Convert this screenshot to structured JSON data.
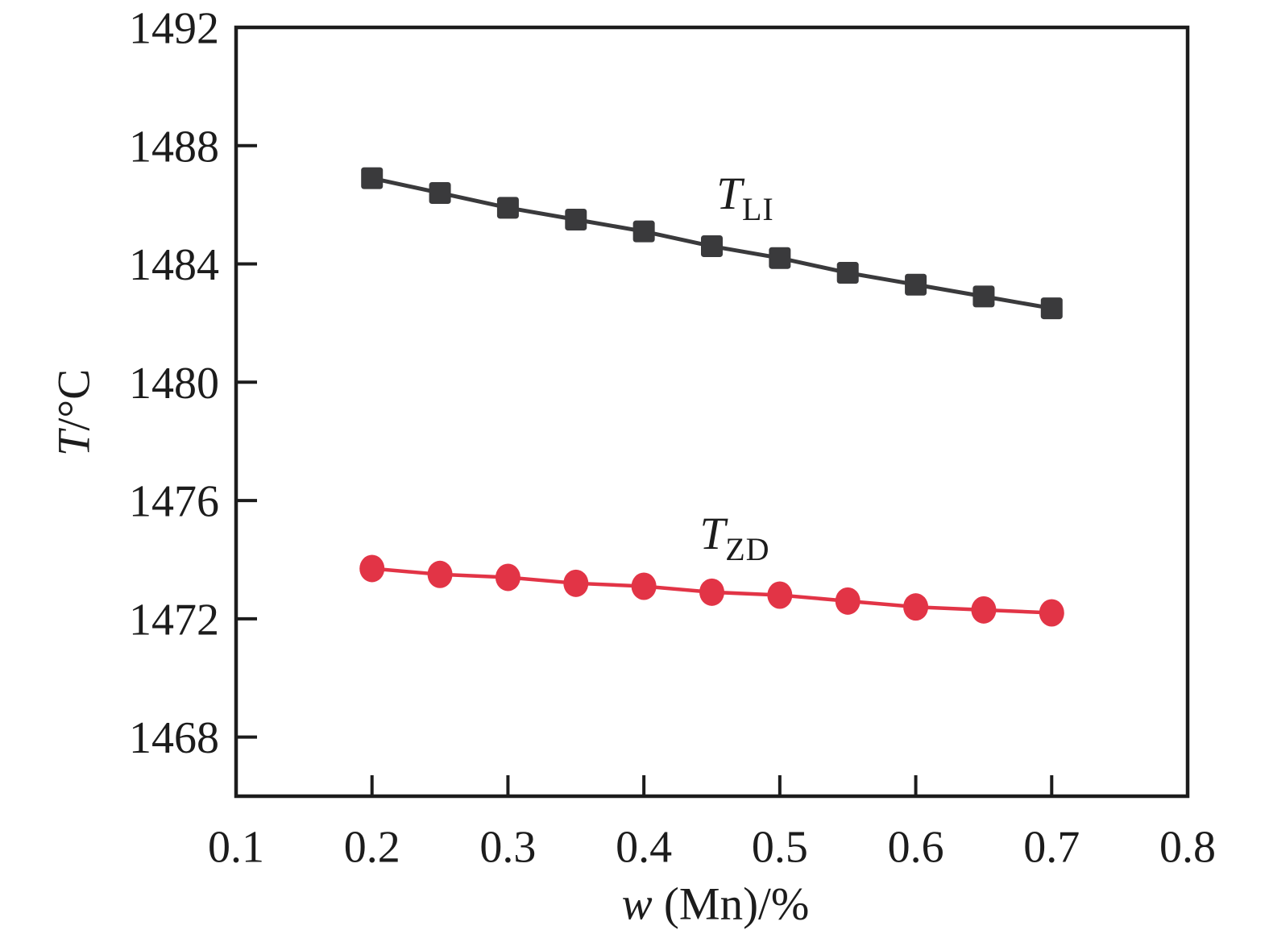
{
  "chart_data": {
    "type": "line",
    "title": "",
    "xlabel": {
      "main": "w",
      "rest": " (Mn)/%"
    },
    "ylabel": {
      "main": "T",
      "rest": "/°C"
    },
    "xlim": [
      0.1,
      0.8
    ],
    "ylim": [
      1466,
      1492
    ],
    "x_ticks": [
      "0.1",
      "0.2",
      "0.3",
      "0.4",
      "0.5",
      "0.6",
      "0.7",
      "0.8"
    ],
    "y_ticks": [
      "1468",
      "1472",
      "1476",
      "1480",
      "1484",
      "1488",
      "1492"
    ],
    "grid": false,
    "legend_position": "inline-labels",
    "x": [
      0.2,
      0.25,
      0.3,
      0.35,
      0.4,
      0.45,
      0.5,
      0.55,
      0.6,
      0.65,
      0.7
    ],
    "series": [
      {
        "name": "T_LI",
        "label": {
          "main": "T",
          "sub": "LI"
        },
        "marker": "square",
        "color": "#3a3a3c",
        "values": [
          1486.9,
          1486.4,
          1485.9,
          1485.5,
          1485.1,
          1484.6,
          1484.2,
          1483.7,
          1483.3,
          1482.9,
          1482.5
        ]
      },
      {
        "name": "T_ZD",
        "label": {
          "main": "T",
          "sub": "ZD"
        },
        "marker": "circle",
        "color": "#e23446",
        "values": [
          1473.7,
          1473.5,
          1473.4,
          1473.2,
          1473.1,
          1472.9,
          1472.8,
          1472.6,
          1472.4,
          1472.3,
          1472.2
        ]
      }
    ],
    "frame_color": "#1c1c1c"
  }
}
